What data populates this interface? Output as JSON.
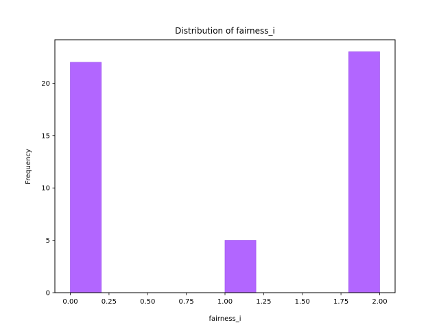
{
  "chart_data": {
    "type": "bar",
    "title": "Distribution of  fairness_i",
    "xlabel": "fairness_i",
    "ylabel": "Frequency",
    "xlim": [
      -0.1,
      2.1
    ],
    "ylim": [
      0,
      24.15
    ],
    "bar_color": "#b266ff",
    "bins": [
      {
        "x0": 0.0,
        "x1": 0.2,
        "value": 22
      },
      {
        "x0": 0.2,
        "x1": 0.4,
        "value": 0
      },
      {
        "x0": 0.4,
        "x1": 0.6,
        "value": 0
      },
      {
        "x0": 0.6,
        "x1": 0.8,
        "value": 0
      },
      {
        "x0": 0.8,
        "x1": 1.0,
        "value": 0
      },
      {
        "x0": 1.0,
        "x1": 1.2,
        "value": 5
      },
      {
        "x0": 1.2,
        "x1": 1.4,
        "value": 0
      },
      {
        "x0": 1.4,
        "x1": 1.6,
        "value": 0
      },
      {
        "x0": 1.6,
        "x1": 1.8,
        "value": 0
      },
      {
        "x0": 1.8,
        "x1": 2.0,
        "value": 23
      }
    ],
    "xticks": [
      {
        "value": 0.0,
        "label": "0.00"
      },
      {
        "value": 0.25,
        "label": "0.25"
      },
      {
        "value": 0.5,
        "label": "0.50"
      },
      {
        "value": 0.75,
        "label": "0.75"
      },
      {
        "value": 1.0,
        "label": "1.00"
      },
      {
        "value": 1.25,
        "label": "1.25"
      },
      {
        "value": 1.5,
        "label": "1.50"
      },
      {
        "value": 1.75,
        "label": "1.75"
      },
      {
        "value": 2.0,
        "label": "2.00"
      }
    ],
    "yticks": [
      {
        "value": 0,
        "label": "0"
      },
      {
        "value": 5,
        "label": "5"
      },
      {
        "value": 10,
        "label": "10"
      },
      {
        "value": 15,
        "label": "15"
      },
      {
        "value": 20,
        "label": "20"
      }
    ],
    "grid": false,
    "legend": false
  }
}
